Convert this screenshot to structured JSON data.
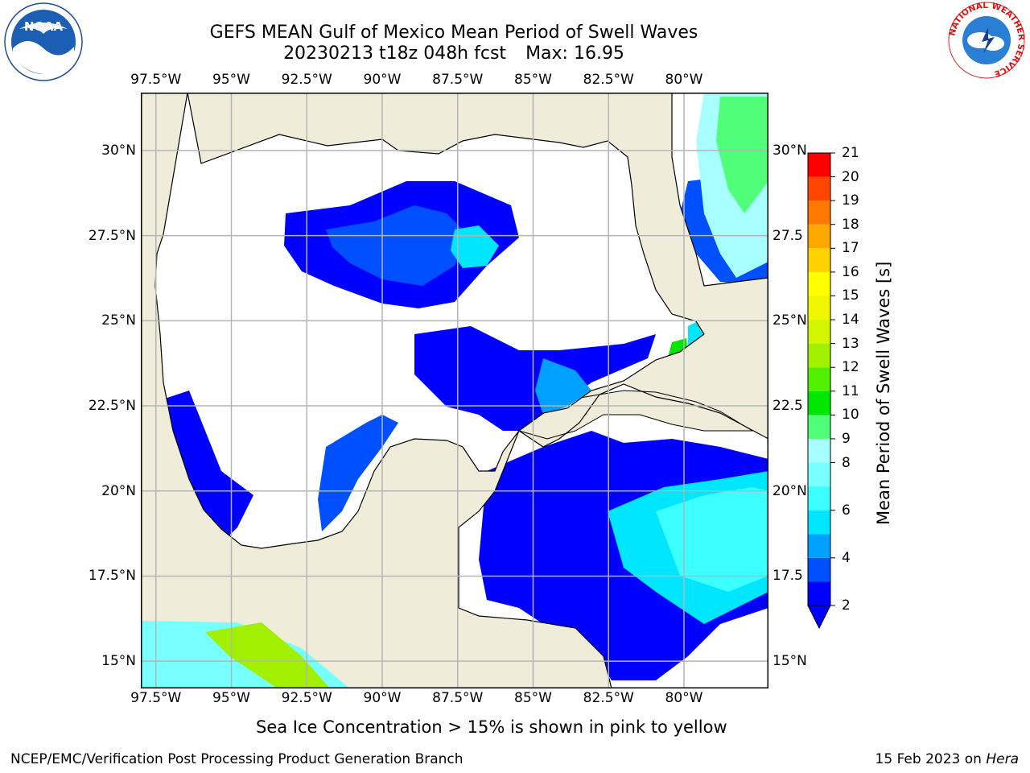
{
  "title": {
    "line1": "GEFS MEAN Gulf of Mexico Mean Period of Swell Waves",
    "line2_date": "20230213 t18z 048h fcst",
    "line2_max": "Max: 16.95"
  },
  "map": {
    "lon_range": [
      -98,
      -77.2
    ],
    "lat_range": [
      14.2,
      31.7
    ],
    "lon_ticks": [
      {
        "value": -97.5,
        "label": "97.5°W"
      },
      {
        "value": -95,
        "label": "95°W"
      },
      {
        "value": -92.5,
        "label": "92.5°W"
      },
      {
        "value": -90,
        "label": "90°W"
      },
      {
        "value": -87.5,
        "label": "87.5°W"
      },
      {
        "value": -85,
        "label": "85°W"
      },
      {
        "value": -82.5,
        "label": "82.5°W"
      },
      {
        "value": -80,
        "label": "80°W"
      }
    ],
    "lat_ticks_left": [
      {
        "value": 30,
        "label": "30°N"
      },
      {
        "value": 27.5,
        "label": "27.5°N"
      },
      {
        "value": 25,
        "label": "25°N"
      },
      {
        "value": 22.5,
        "label": "22.5°N"
      },
      {
        "value": 20,
        "label": "20°N"
      },
      {
        "value": 17.5,
        "label": "17.5°N"
      },
      {
        "value": 15,
        "label": "15°N"
      }
    ],
    "lat_ticks_right": [
      {
        "value": 30,
        "label": "30°N"
      },
      {
        "value": 27.5,
        "label": "27.5"
      },
      {
        "value": 25,
        "label": "25°N"
      },
      {
        "value": 22.5,
        "label": "22.5"
      },
      {
        "value": 20,
        "label": "20°N"
      },
      {
        "value": 17.5,
        "label": "17.5"
      },
      {
        "value": 15,
        "label": "15°N"
      }
    ],
    "colors": {
      "land": "#efedda",
      "ocean_nodata": "#ffffff",
      "grid": "#b4b4b4",
      "coast": "#000000"
    }
  },
  "colorbar": {
    "label": "Mean Period of Swell Waves [s]",
    "levels": [
      2,
      3,
      4,
      5,
      6,
      7,
      8,
      9,
      10,
      11,
      12,
      13,
      14,
      15,
      16,
      17,
      18,
      19,
      20,
      21
    ],
    "tick_labels": [
      "2",
      "4",
      "6",
      "8",
      "9",
      "10",
      "11",
      "12",
      "13",
      "14",
      "15",
      "16",
      "17",
      "18",
      "19",
      "20",
      "21"
    ],
    "tick_values": [
      2,
      4,
      6,
      8,
      9,
      10,
      11,
      12,
      13,
      14,
      15,
      16,
      17,
      18,
      19,
      20,
      21
    ],
    "colors": [
      "#0000ff",
      "#0050ff",
      "#00a0ff",
      "#00e6ff",
      "#3cffff",
      "#78ffff",
      "#a8ffff",
      "#50ff78",
      "#00e600",
      "#50f000",
      "#a0f000",
      "#d2f500",
      "#f0f500",
      "#ffff00",
      "#ffd200",
      "#ffa800",
      "#ff7800",
      "#ff4600",
      "#ff0000"
    ],
    "extend_color": "#0000ff"
  },
  "note": "Sea Ice Concentration > 15% is shown in pink to yellow",
  "footer": {
    "left": "NCEP/EMC/Verification Post Processing Product Generation Branch",
    "right_date": "15 Feb 2023 on",
    "right_machine": "Hera"
  },
  "logos": {
    "noaa_text": "NOAA",
    "nws_ring_text": "NATIONAL WEATHER SERVICE"
  }
}
